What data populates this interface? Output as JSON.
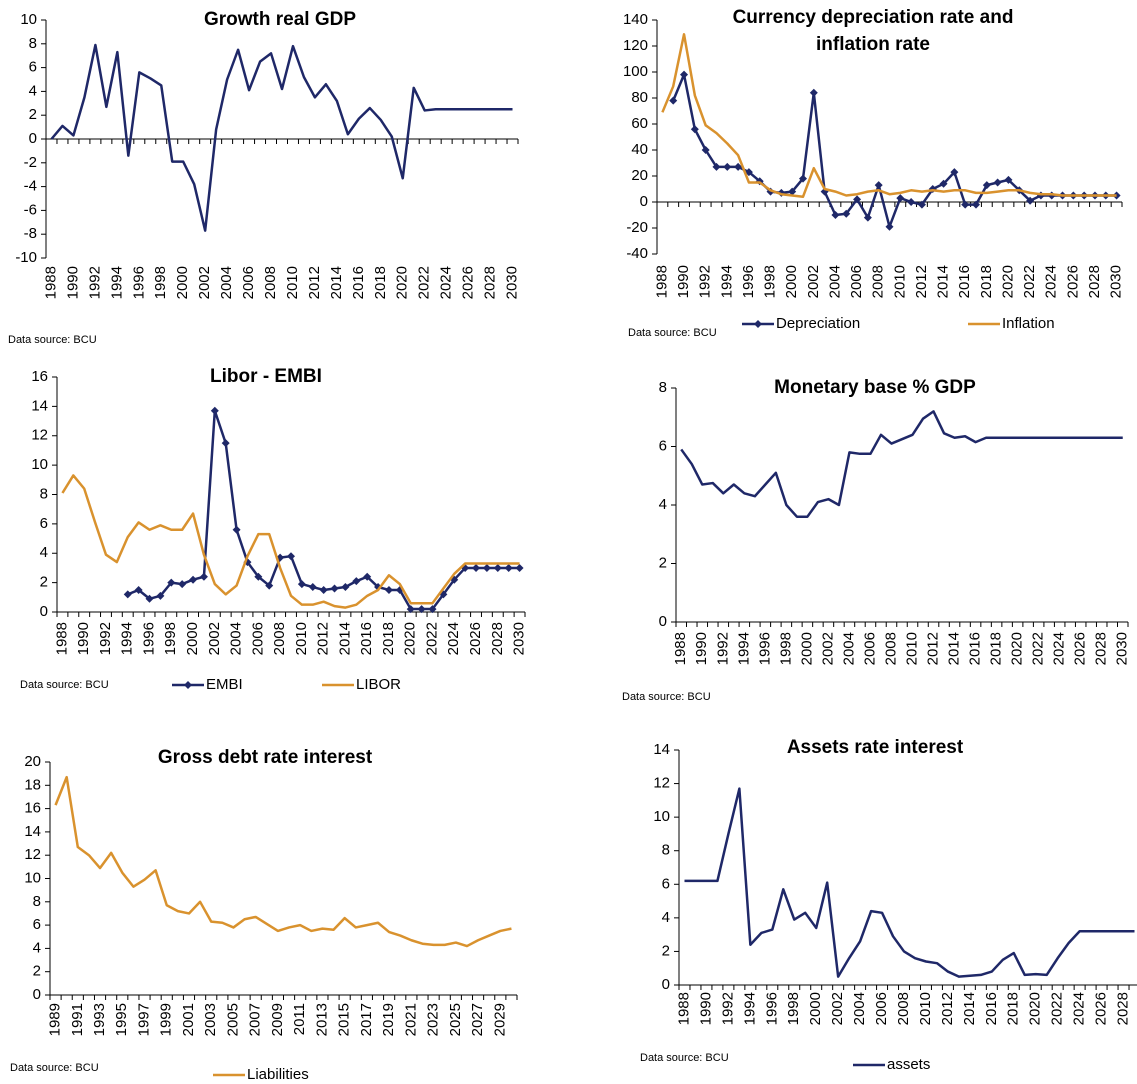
{
  "chart_data": [
    {
      "type": "line",
      "title": "Growth real GDP",
      "source": "Data source: BCU",
      "categories": [
        "1988",
        null,
        "1990",
        null,
        "1992",
        null,
        "1994",
        null,
        "1996",
        null,
        "1998",
        null,
        "2000",
        null,
        "2002",
        null,
        "2004",
        null,
        "2006",
        null,
        "2008",
        null,
        "2010",
        null,
        "2012",
        null,
        "2014",
        null,
        "2016",
        null,
        "2018",
        null,
        "2020",
        null,
        "2022",
        null,
        "2024",
        null,
        "2026",
        null,
        "2028",
        null,
        "2030"
      ],
      "series": [
        {
          "color": "#1f2868",
          "values": [
            0,
            1.1,
            0.3,
            3.5,
            7.9,
            2.7,
            7.3,
            -1.4,
            5.6,
            5.1,
            4.5,
            -1.9,
            -1.9,
            -3.8,
            -7.7,
            0.8,
            5.0,
            7.5,
            4.1,
            6.5,
            7.2,
            4.2,
            7.8,
            5.2,
            3.5,
            4.6,
            3.2,
            0.4,
            1.7,
            2.6,
            1.6,
            0.2,
            -3.3,
            4.3,
            2.4,
            2.5,
            2.5,
            2.5,
            2.5,
            2.5,
            2.5,
            2.5,
            2.5
          ]
        }
      ],
      "ylim": [
        -10,
        10
      ],
      "yticks": [
        -10,
        -8,
        -6,
        -4,
        -2,
        0,
        2,
        4,
        6,
        8,
        10
      ]
    },
    {
      "type": "line",
      "title": "Currency depreciation rate and inflation rate",
      "source": "Data source: BCU",
      "categories": [
        "1988",
        null,
        "1990",
        null,
        "1992",
        null,
        "1994",
        null,
        "1996",
        null,
        "1998",
        null,
        "2000",
        null,
        "2002",
        null,
        "2004",
        null,
        "2006",
        null,
        "2008",
        null,
        "2010",
        null,
        "2012",
        null,
        "2014",
        null,
        "2016",
        null,
        "2018",
        null,
        "2020",
        null,
        "2022",
        null,
        "2024",
        null,
        "2026",
        null,
        "2028",
        null,
        "2030"
      ],
      "series": [
        {
          "name": "Depreciation",
          "color": "#1f2868",
          "marker": "diamond",
          "values": [
            null,
            78,
            98,
            56,
            40,
            27,
            27,
            27,
            23,
            16,
            8,
            7,
            8,
            18,
            84,
            8,
            -10,
            -9,
            2,
            -12,
            13,
            -19,
            3,
            0,
            -2,
            10,
            14,
            23,
            -2,
            -2,
            13,
            15,
            17,
            9,
            1,
            5,
            5,
            5,
            5,
            5,
            5,
            5,
            5
          ]
        },
        {
          "name": "Inflation",
          "color": "#d9922e",
          "values": [
            69,
            89,
            129,
            82,
            59,
            53,
            45,
            36,
            15,
            15,
            9,
            6,
            5,
            4,
            26,
            10,
            8,
            5,
            6,
            8,
            9,
            6,
            7,
            9,
            8,
            9,
            8,
            9,
            9,
            7,
            7,
            8,
            9,
            9,
            7,
            6,
            6,
            5,
            5,
            5,
            5,
            5,
            5
          ]
        }
      ],
      "ylim": [
        -40,
        140
      ],
      "yticks": [
        -40,
        -20,
        0,
        20,
        40,
        60,
        80,
        100,
        120,
        140
      ]
    },
    {
      "type": "line",
      "title": "Libor - EMBI",
      "source": "Data source: BCU",
      "categories": [
        "1988",
        null,
        "1990",
        null,
        "1992",
        null,
        "1994",
        null,
        "1996",
        null,
        "1998",
        null,
        "2000",
        null,
        "2002",
        null,
        "2004",
        null,
        "2006",
        null,
        "2008",
        null,
        "2010",
        null,
        "2012",
        null,
        "2014",
        null,
        "2016",
        null,
        "2018",
        null,
        "2020",
        null,
        "2022",
        null,
        "2024",
        null,
        "2026",
        null,
        "2028",
        null,
        "2030"
      ],
      "series": [
        {
          "name": "EMBI",
          "color": "#1f2868",
          "marker": "diamond",
          "values": [
            null,
            null,
            null,
            null,
            null,
            null,
            1.2,
            1.5,
            0.9,
            1.1,
            2.0,
            1.9,
            2.2,
            2.4,
            13.7,
            11.5,
            5.6,
            3.4,
            2.4,
            1.8,
            3.7,
            3.8,
            1.9,
            1.7,
            1.5,
            1.6,
            1.7,
            2.1,
            2.4,
            1.7,
            1.5,
            1.5,
            0.2,
            0.2,
            0.2,
            1.2,
            2.2,
            3.0,
            3.0,
            3.0,
            3.0,
            3.0,
            3.0
          ]
        },
        {
          "name": "LIBOR",
          "color": "#d9922e",
          "values": [
            8.1,
            9.3,
            8.4,
            6.1,
            3.9,
            3.4,
            5.1,
            6.1,
            5.6,
            5.9,
            5.6,
            5.6,
            6.7,
            3.9,
            1.9,
            1.2,
            1.8,
            3.8,
            5.3,
            5.3,
            3.0,
            1.1,
            0.5,
            0.5,
            0.7,
            0.4,
            0.3,
            0.5,
            1.1,
            1.5,
            2.5,
            1.9,
            0.6,
            0.6,
            0.6,
            1.6,
            2.6,
            3.3,
            3.3,
            3.3,
            3.3,
            3.3,
            3.3
          ]
        }
      ],
      "ylim": [
        0,
        16
      ],
      "yticks": [
        0,
        2,
        4,
        6,
        8,
        10,
        12,
        14,
        16
      ]
    },
    {
      "type": "line",
      "title": "Monetary base % GDP",
      "source": "Data source: BCU",
      "categories": [
        "1988",
        null,
        "1990",
        null,
        "1992",
        null,
        "1994",
        null,
        "1996",
        null,
        "1998",
        null,
        "2000",
        null,
        "2002",
        null,
        "2004",
        null,
        "2006",
        null,
        "2008",
        null,
        "2010",
        null,
        "2012",
        null,
        "2014",
        null,
        "2016",
        null,
        "2018",
        null,
        "2020",
        null,
        "2022",
        null,
        "2024",
        null,
        "2026",
        null,
        "2028",
        null,
        "2030"
      ],
      "series": [
        {
          "color": "#1f2868",
          "values": [
            5.9,
            5.4,
            4.7,
            4.75,
            4.4,
            4.7,
            4.4,
            4.3,
            4.7,
            5.1,
            4.0,
            3.6,
            3.6,
            4.1,
            4.2,
            4.0,
            5.8,
            5.75,
            5.75,
            6.4,
            6.1,
            6.25,
            6.4,
            6.95,
            7.2,
            6.45,
            6.3,
            6.35,
            6.15,
            6.3,
            6.3,
            6.3,
            6.3,
            6.3,
            6.3,
            6.3,
            6.3,
            6.3,
            6.3,
            6.3,
            6.3,
            6.3,
            6.3
          ]
        }
      ],
      "ylim": [
        0,
        8
      ],
      "yticks": [
        0,
        2,
        4,
        6,
        8
      ]
    },
    {
      "type": "line",
      "title": "Gross debt rate interest",
      "source": "Data source: BCU",
      "categories": [
        "1989",
        null,
        "1991",
        null,
        "1993",
        null,
        "1995",
        null,
        "1997",
        null,
        "1999",
        null,
        "2001",
        null,
        "2003",
        null,
        "2005",
        null,
        "2007",
        null,
        "2009",
        null,
        "2011",
        null,
        "2013",
        null,
        "2015",
        null,
        "2017",
        null,
        "2019",
        null,
        "2021",
        null,
        "2023",
        null,
        "2025",
        null,
        "2027",
        null,
        "2029",
        null
      ],
      "series": [
        {
          "name": "Liabilities",
          "color": "#d9922e",
          "values": [
            16.3,
            18.7,
            12.7,
            12.0,
            10.9,
            12.2,
            10.5,
            9.3,
            9.9,
            10.7,
            7.7,
            7.2,
            7.0,
            8.0,
            6.3,
            6.2,
            5.8,
            6.5,
            6.7,
            6.1,
            5.5,
            5.8,
            6.0,
            5.5,
            5.7,
            5.6,
            6.6,
            5.8,
            6.0,
            6.2,
            5.4,
            5.1,
            4.7,
            4.4,
            4.3,
            4.3,
            4.5,
            4.2,
            4.7,
            5.1,
            5.5,
            5.7
          ]
        }
      ],
      "ylim": [
        0,
        20
      ],
      "yticks": [
        0,
        2,
        4,
        6,
        8,
        10,
        12,
        14,
        16,
        18,
        20
      ]
    },
    {
      "type": "line",
      "title": "Assets rate interest",
      "source": "Data source: BCU",
      "categories": [
        "1988",
        null,
        "1990",
        null,
        "1992",
        null,
        "1994",
        null,
        "1996",
        null,
        "1998",
        null,
        "2000",
        null,
        "2002",
        null,
        "2004",
        null,
        "2006",
        null,
        "2008",
        null,
        "2010",
        null,
        "2012",
        null,
        "2014",
        null,
        "2016",
        null,
        "2018",
        null,
        "2020",
        null,
        "2022",
        null,
        "2024",
        null,
        "2026",
        null,
        "2028",
        null
      ],
      "series": [
        {
          "name": "assets",
          "color": "#1f2868",
          "values": [
            6.2,
            6.2,
            6.2,
            6.2,
            9.0,
            11.7,
            2.4,
            3.1,
            3.3,
            5.7,
            3.9,
            4.3,
            3.4,
            6.1,
            0.5,
            1.6,
            2.6,
            4.4,
            4.3,
            2.9,
            2.0,
            1.6,
            1.4,
            1.3,
            0.8,
            0.5,
            0.55,
            0.6,
            0.8,
            1.5,
            1.9,
            0.6,
            0.65,
            0.6,
            1.6,
            2.5,
            3.2,
            3.2,
            3.2,
            3.2,
            3.2,
            3.2
          ]
        }
      ],
      "ylim": [
        0,
        14
      ],
      "yticks": [
        0,
        2,
        4,
        6,
        8,
        10,
        12,
        14
      ]
    }
  ]
}
